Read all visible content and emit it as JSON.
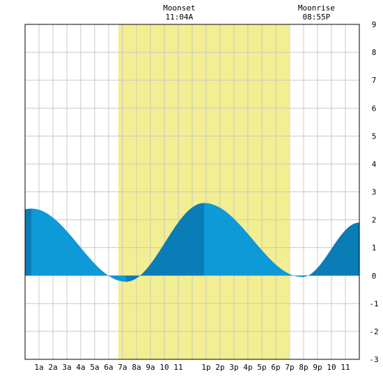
{
  "chart_data": {
    "type": "area",
    "title": "",
    "xlabel": "",
    "ylabel": "",
    "x_range_hours": [
      0,
      24
    ],
    "ylim": [
      -3,
      9
    ],
    "y_ticks": [
      -3,
      -2,
      -1,
      0,
      1,
      2,
      3,
      4,
      5,
      6,
      7,
      8,
      9
    ],
    "x_tick_labels": [
      "1a",
      "2a",
      "3a",
      "4a",
      "5a",
      "6a",
      "7a",
      "8a",
      "9a",
      "10",
      "11",
      "1p",
      "2p",
      "3p",
      "4p",
      "5p",
      "6p",
      "7p",
      "8p",
      "9p",
      "10",
      "11"
    ],
    "x_tick_hours": [
      1,
      2,
      3,
      4,
      5,
      6,
      7,
      8,
      9,
      10,
      11,
      13,
      14,
      15,
      16,
      17,
      18,
      19,
      20,
      21,
      22,
      23
    ],
    "grid": true,
    "daylight_hours": [
      6.7,
      18.95
    ],
    "tide_extremes": [
      {
        "hour": 0.45,
        "value": 2.4
      },
      {
        "hour": 7.25,
        "value": -0.22
      },
      {
        "hour": 12.85,
        "value": 2.6
      },
      {
        "hour": 19.9,
        "value": -0.05
      },
      {
        "hour": 24.0,
        "value": 1.9
      }
    ],
    "phase_boundaries_hours": [
      0.45,
      7.25,
      12.85,
      19.9
    ],
    "colors": {
      "daylight": "#f2ee91",
      "tide_light": "#0e99d8",
      "tide_dark": "#0a7cb6",
      "grid": "#c8c8c8",
      "background": "#ffffff",
      "border": "#000000"
    }
  },
  "moon_events": [
    {
      "label": "Moonset",
      "time": "11:04A",
      "hour": 11.07
    },
    {
      "label": "Moonrise",
      "time": "08:55P",
      "hour": 20.92
    }
  ]
}
